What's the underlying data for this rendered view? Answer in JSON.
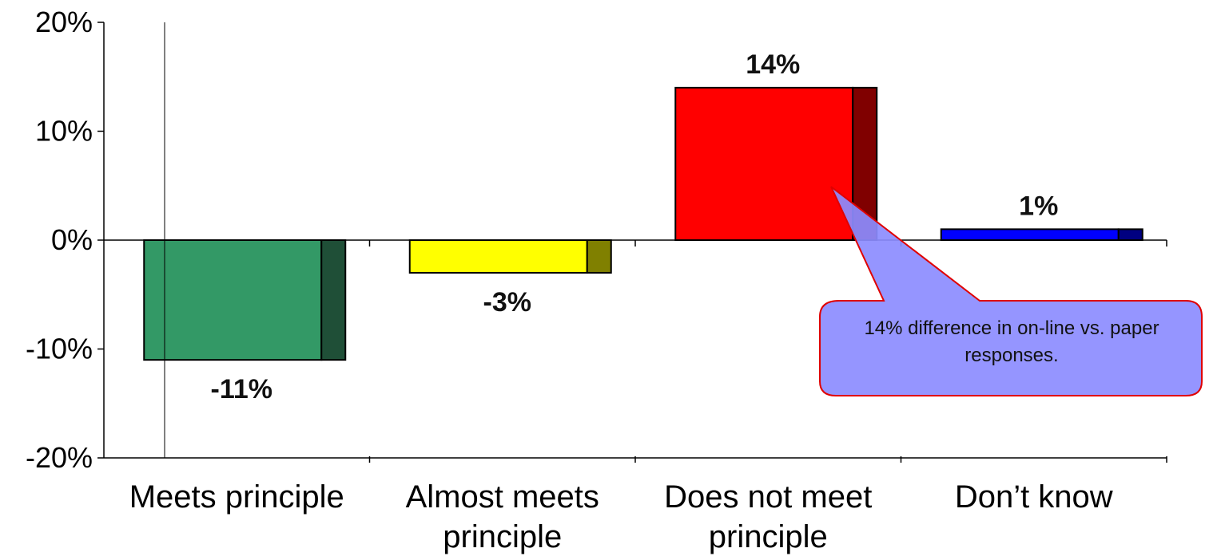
{
  "chart_data": {
    "type": "bar",
    "categories": [
      [
        "Meets principle"
      ],
      [
        "Almost meets",
        "principle"
      ],
      [
        "Does not meet",
        "principle"
      ],
      [
        "Don’t know"
      ]
    ],
    "values": [
      -11,
      -3,
      14,
      1
    ],
    "value_labels": [
      "-11%",
      "-3%",
      "14%",
      "1%"
    ],
    "colors": [
      "#339966",
      "#FFFF00",
      "#FF0000",
      "#0000FF"
    ],
    "side_colors": [
      "#1F4F37",
      "#808000",
      "#800000",
      "#000080"
    ],
    "ylim": [
      -20,
      20
    ],
    "yticks": [
      20,
      10,
      0,
      -10,
      -20
    ],
    "ytick_labels": [
      "20%",
      "10%",
      "0%",
      "-10%",
      "-20%"
    ],
    "grid": false,
    "annotation": {
      "text": "14% difference in on-line vs. paper responses.",
      "target_category": "Does not meet principle",
      "fill": "#8C8CFF",
      "stroke": "#E00000"
    }
  }
}
